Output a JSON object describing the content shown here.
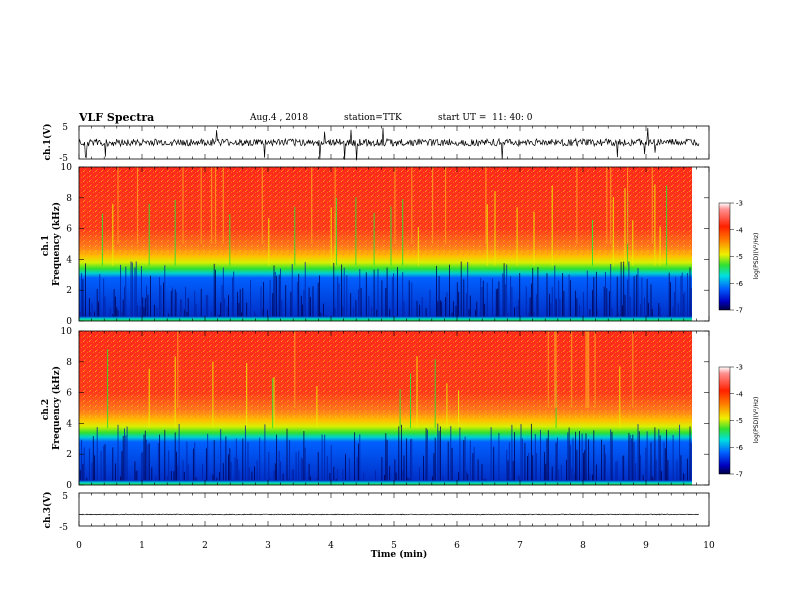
{
  "header": {
    "title": "VLF Spectra",
    "date": "Aug.4 , 2018",
    "station": "station=TTK",
    "start": "start UT =  11: 40: 0"
  },
  "chart_data": [
    {
      "type": "line",
      "panel": "ch1-waveform",
      "ylabel": "ch.1(V)",
      "y_ticks": [
        "5",
        "-5"
      ],
      "ylim": [
        -5,
        5
      ],
      "baseline": 0,
      "color": "#000000"
    },
    {
      "type": "heatmap",
      "panel": "ch1-spectrogram",
      "ylabel": "ch.1\nFrequency (kHz)",
      "y_ticks": [
        "0",
        "2",
        "4",
        "6",
        "8",
        "10"
      ],
      "ylim": [
        0,
        10
      ],
      "xlim": [
        0,
        9.85
      ],
      "colorbar": {
        "label": "log(PSD)(V²/Hz)",
        "ticks": [
          "-3",
          "-4",
          "-5",
          "-6",
          "-7"
        ],
        "range": [
          -7,
          -3
        ]
      },
      "band_boundaries_khz": {
        "blue_top": 4.2,
        "green_top": 5.0,
        "yellow_top": 6.0
      }
    },
    {
      "type": "heatmap",
      "panel": "ch2-spectrogram",
      "ylabel": "ch.2\nFrequency (kHz)",
      "y_ticks": [
        "0",
        "2",
        "4",
        "6",
        "8",
        "10"
      ],
      "ylim": [
        0,
        10
      ],
      "xlim": [
        0,
        9.85
      ],
      "colorbar": {
        "label": "log(PSD)(V²/Hz)",
        "ticks": [
          "-3",
          "-4",
          "-5",
          "-6",
          "-7"
        ],
        "range": [
          -7,
          -3
        ]
      },
      "band_boundaries_khz": {
        "blue_top": 4.3,
        "green_top": 5.0,
        "yellow_top": 6.0
      }
    },
    {
      "type": "line",
      "panel": "ch3-waveform",
      "ylabel": "ch.3(V)",
      "y_ticks": [
        "5",
        "-5"
      ],
      "ylim": [
        -5,
        5
      ],
      "baseline": -1.5,
      "color": "#000000"
    }
  ],
  "xaxis": {
    "label": "Time (min)",
    "ticks": [
      "0",
      "1",
      "2",
      "3",
      "4",
      "5",
      "6",
      "7",
      "8",
      "9",
      "10"
    ],
    "xlim": [
      0,
      10
    ]
  },
  "colors": {
    "red": "#ff2a1a",
    "orange": "#ff8a1a",
    "yellow": "#e8f000",
    "green": "#2ee02e",
    "cyan": "#00d8d8",
    "blue": "#0050ff",
    "navy": "#000060"
  }
}
